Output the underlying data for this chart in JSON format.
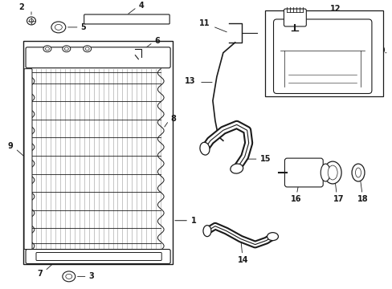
{
  "bg_color": "#ffffff",
  "line_color": "#1a1a1a",
  "fig_width": 4.89,
  "fig_height": 3.6,
  "dpi": 100
}
